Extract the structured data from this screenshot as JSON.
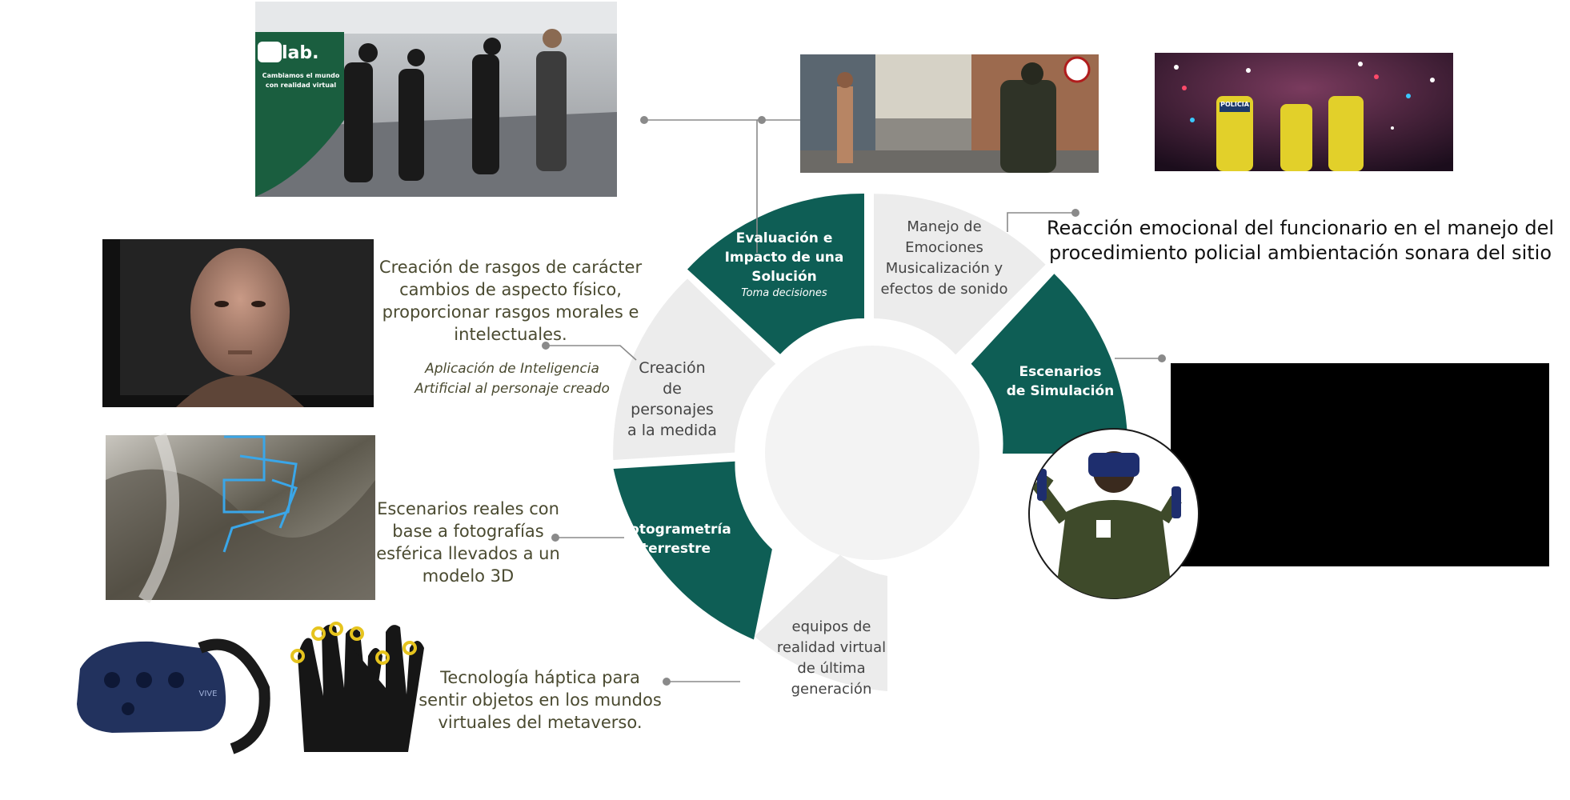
{
  "segments": [
    {
      "id": "evaluacion",
      "lines": [
        "Evaluación e",
        "Impacto de una",
        "Solución"
      ],
      "sub": "Toma decisiones",
      "fill": "#0e5e55"
    },
    {
      "id": "manejo",
      "lines": [
        "Manejo de",
        "Emociones",
        "Musicalización y",
        "efectos de sonido"
      ],
      "fill": "#ececec"
    },
    {
      "id": "escenarios",
      "lines": [
        "Escenarios",
        "de Simulación"
      ],
      "fill": "#0e5e55"
    },
    {
      "id": "equipos",
      "lines": [
        "equipos de",
        "realidad virtual",
        "de última",
        "generación"
      ],
      "fill": "#ececec"
    },
    {
      "id": "fotogrametria",
      "lines": [
        "Fotogrametría",
        "terrestre"
      ],
      "fill": "#0e5e55"
    },
    {
      "id": "creacion",
      "lines": [
        "Creación",
        "de",
        "personajes",
        "a la medida"
      ],
      "fill": "#ececec"
    }
  ],
  "annotations": {
    "rasgos": [
      "Creación de rasgos de carácter",
      "cambios de aspecto físico,",
      "proporcionar  rasgos morales e",
      "intelectuales."
    ],
    "ia": [
      "Aplicación de Inteligencia",
      "Artificial al personaje creado"
    ],
    "reales": [
      "Escenarios reales con",
      "base a fotografías",
      "esférica llevados a un",
      "modelo 3D"
    ],
    "haptica": [
      "Tecnología háptica para",
      "sentir objetos en los mundos",
      "virtuales del metaverso."
    ],
    "reaccion": [
      "Reacción emocional del funcionario en el manejo del",
      "procedimiento policial ambientación sonara del sitio"
    ]
  },
  "vr_banner": {
    "logo": "lab.",
    "line1": "Cambiamos el mundo",
    "line2": "con realidad virtual"
  },
  "badges": {
    "policia": "POLICIA",
    "vive": "VIVE"
  },
  "colors": {
    "teal": "#0e5e55",
    "light": "#ececec",
    "connector": "#8a8a8a",
    "olive_text": "#4a4a30"
  }
}
